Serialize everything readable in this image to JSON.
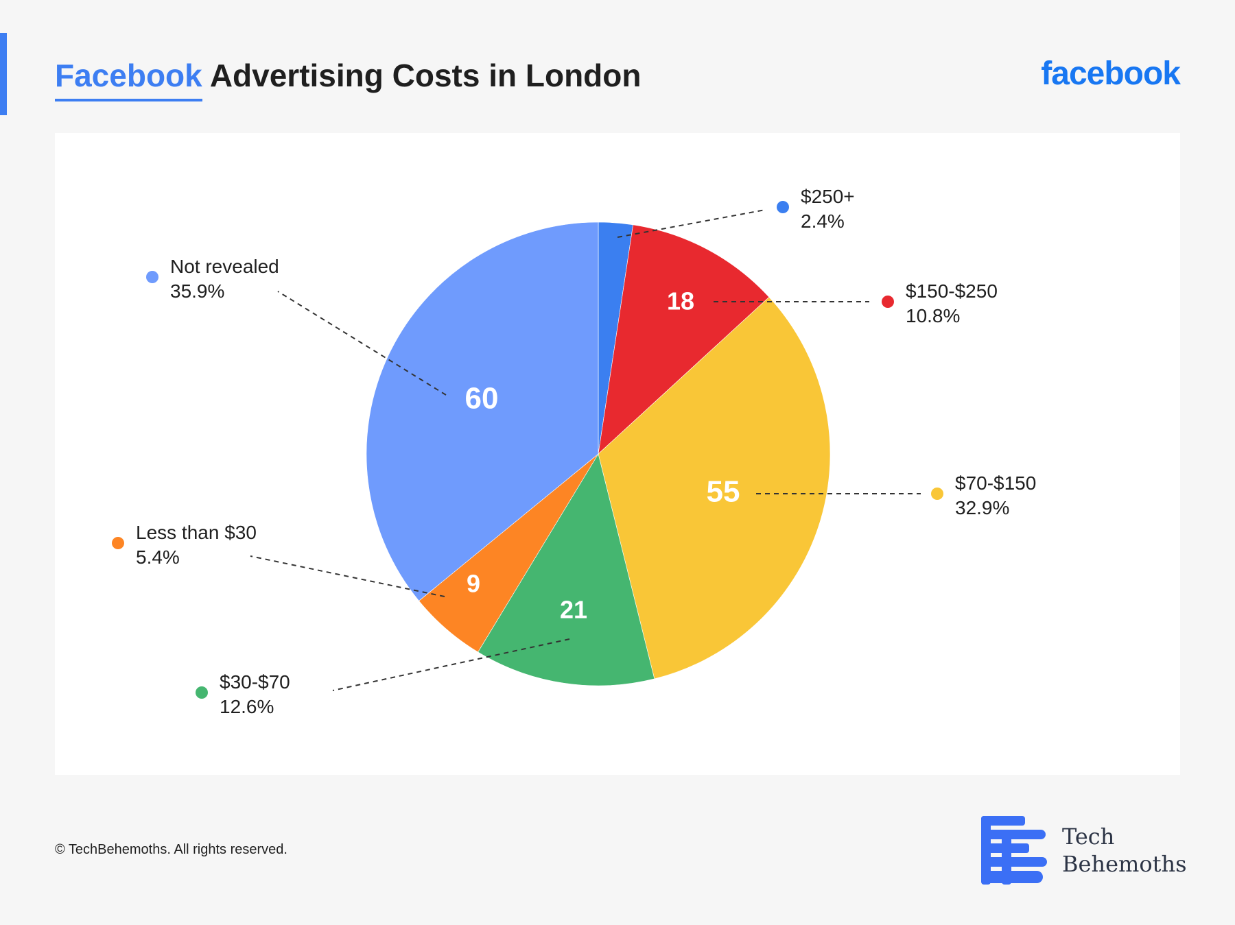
{
  "header": {
    "title_brand": "Facebook",
    "title_rest": "Advertising Costs in London",
    "logo_text": "facebook"
  },
  "footer": {
    "copyright": "© TechBehemoths. All rights reserved.",
    "logo_line1": "Tech",
    "logo_line2": "Behemoths"
  },
  "colors": {
    "accent": "#3d7ef2",
    "facebook_blue": "#1877f2"
  },
  "chart_data": {
    "type": "pie",
    "start_angle_deg": 0,
    "direction": "clockwise",
    "slices": [
      {
        "label": "$250+",
        "value": 4,
        "percent": "2.4%",
        "color": "#3b7ff0",
        "value_label": ""
      },
      {
        "label": "$150-$250",
        "value": 18,
        "percent": "10.8%",
        "color": "#e8292f",
        "value_label": "18"
      },
      {
        "label": "$70-$150",
        "value": 55,
        "percent": "32.9%",
        "color": "#f9c637",
        "value_label": "55"
      },
      {
        "label": "$30-$70",
        "value": 21,
        "percent": "12.6%",
        "color": "#45b670",
        "value_label": "21"
      },
      {
        "label": "Less than $30",
        "value": 9,
        "percent": "5.4%",
        "color": "#fd8524",
        "value_label": "9"
      },
      {
        "label": "Not revealed",
        "value": 60,
        "percent": "35.9%",
        "color": "#6f9bfd",
        "value_label": "60"
      }
    ]
  }
}
